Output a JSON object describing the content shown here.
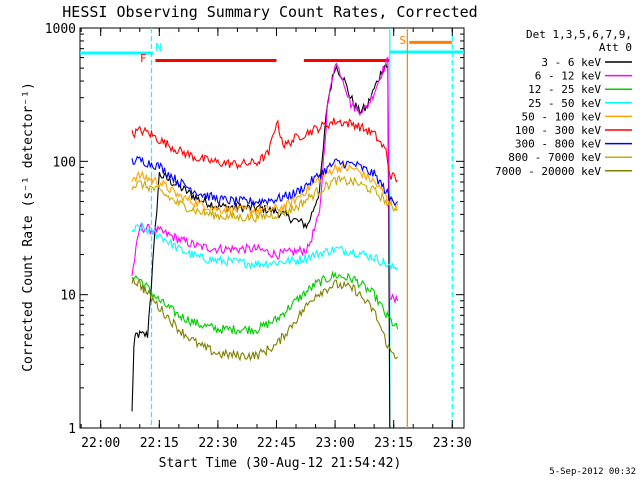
{
  "chart_data": {
    "type": "line",
    "title": "HESSI Observing Summary Count Rates, Corrected",
    "xlabel": "Start Time (30-Aug-12 21:54:42)",
    "ylabel": "Corrected Count Rate (s⁻¹ detector⁻¹)",
    "y_scale": "log",
    "ylim": [
      1,
      1000
    ],
    "xlim": [
      "21:54:42",
      "23:33:00"
    ],
    "x_ticks": [
      "22:00",
      "22:15",
      "22:30",
      "22:45",
      "23:00",
      "23:15",
      "23:30"
    ],
    "y_ticks": [
      "1",
      "10",
      "100",
      "1000"
    ],
    "footer": "5-Sep-2012 00:32",
    "legend_placement": "right",
    "legend_header": [
      "Det 1,3,5,6,7,9,",
      "Att 0"
    ],
    "series": [
      {
        "name": "3 - 6 keV",
        "color": "#000000",
        "x": [
          "22:08",
          "22:08:30",
          "22:09",
          "22:12",
          "22:15",
          "22:20",
          "22:25",
          "22:30",
          "22:35",
          "22:40",
          "22:45",
          "22:50",
          "22:53",
          "22:56",
          "22:58",
          "23:00",
          "23:02",
          "23:04",
          "23:06",
          "23:08",
          "23:10",
          "23:12",
          "23:13",
          "23:13:30",
          "23:14",
          "23:15"
        ],
        "y": [
          1.3,
          4,
          5,
          5,
          80,
          65,
          52,
          46,
          45,
          45,
          42,
          36,
          33,
          60,
          270,
          520,
          430,
          300,
          240,
          250,
          350,
          480,
          540,
          500,
          1,
          1
        ]
      },
      {
        "name": "6 - 12 keV",
        "color": "#ff00ff",
        "x": [
          "22:08",
          "22:10",
          "22:15",
          "22:20",
          "22:25",
          "22:30",
          "22:35",
          "22:40",
          "22:45",
          "22:50",
          "22:53",
          "22:56",
          "22:58",
          "23:00",
          "23:02",
          "23:04",
          "23:06",
          "23:08",
          "23:10",
          "23:12",
          "23:13:30",
          "23:14",
          "23:15",
          "23:16"
        ],
        "y": [
          14,
          32,
          30,
          26,
          23,
          22,
          22,
          22,
          20,
          21,
          22,
          40,
          250,
          560,
          420,
          270,
          240,
          250,
          330,
          470,
          570,
          10,
          9,
          9
        ]
      },
      {
        "name": "12 - 25 keV",
        "color": "#00cc00",
        "x": [
          "22:08",
          "22:10",
          "22:15",
          "22:20",
          "22:25",
          "22:30",
          "22:35",
          "22:40",
          "22:45",
          "22:50",
          "22:55",
          "23:00",
          "23:05",
          "23:10",
          "23:12",
          "23:13",
          "23:14",
          "23:16"
        ],
        "y": [
          14,
          13,
          9,
          7,
          6,
          5.5,
          5.5,
          5.5,
          6.5,
          9,
          12,
          14,
          13,
          10,
          8,
          7,
          6.5,
          5.5
        ]
      },
      {
        "name": "25 - 50 keV",
        "color": "#00ffff",
        "x": [
          "22:08",
          "22:10",
          "22:15",
          "22:20",
          "22:25",
          "22:30",
          "22:35",
          "22:40",
          "22:45",
          "22:50",
          "22:55",
          "23:00",
          "23:05",
          "23:10",
          "23:13",
          "23:14",
          "23:16"
        ],
        "y": [
          30,
          32,
          28,
          22,
          19,
          18,
          17.5,
          17,
          17.5,
          18,
          20,
          22,
          21,
          19,
          17,
          16,
          16
        ]
      },
      {
        "name": "50 - 100 keV",
        "color": "#ffa500",
        "x": [
          "22:08",
          "22:10",
          "22:15",
          "22:20",
          "22:25",
          "22:30",
          "22:35",
          "22:40",
          "22:45",
          "22:48",
          "22:50",
          "22:55",
          "23:00",
          "23:05",
          "23:10",
          "23:13",
          "23:14",
          "23:16"
        ],
        "y": [
          75,
          78,
          70,
          55,
          48,
          44,
          43,
          43,
          44,
          47,
          52,
          70,
          90,
          88,
          70,
          55,
          50,
          48
        ]
      },
      {
        "name": "100 - 300 keV",
        "color": "#ff0000",
        "x": [
          "22:08",
          "22:10",
          "22:12",
          "22:15",
          "22:20",
          "22:25",
          "22:30",
          "22:35",
          "22:40",
          "22:43",
          "22:45",
          "22:47",
          "22:50",
          "22:55",
          "23:00",
          "23:05",
          "23:10",
          "23:13",
          "23:14",
          "23:16"
        ],
        "y": [
          160,
          170,
          165,
          145,
          120,
          105,
          98,
          95,
          98,
          115,
          200,
          130,
          150,
          175,
          200,
          190,
          160,
          120,
          80,
          72
        ]
      },
      {
        "name": "300 - 800 keV",
        "color": "#0000ff",
        "x": [
          "22:08",
          "22:10",
          "22:15",
          "22:20",
          "22:25",
          "22:30",
          "22:35",
          "22:40",
          "22:45",
          "22:50",
          "22:55",
          "23:00",
          "23:05",
          "23:10",
          "23:13",
          "23:14",
          "23:16"
        ],
        "y": [
          100,
          102,
          92,
          70,
          58,
          52,
          50,
          50,
          52,
          58,
          75,
          98,
          95,
          80,
          60,
          52,
          50
        ]
      },
      {
        "name": "800 - 7000 keV",
        "color": "#ccaa00",
        "x": [
          "22:08",
          "22:10",
          "22:15",
          "22:20",
          "22:25",
          "22:30",
          "22:35",
          "22:40",
          "22:45",
          "22:50",
          "22:55",
          "23:00",
          "23:05",
          "23:10",
          "23:13",
          "23:14",
          "23:16"
        ],
        "y": [
          65,
          68,
          60,
          48,
          42,
          39,
          38,
          38,
          40,
          45,
          58,
          72,
          70,
          60,
          50,
          46,
          44
        ]
      },
      {
        "name": "7000 - 20000 keV",
        "color": "#808000",
        "x": [
          "22:08",
          "22:10",
          "22:15",
          "22:20",
          "22:25",
          "22:30",
          "22:35",
          "22:40",
          "22:45",
          "22:50",
          "22:55",
          "23:00",
          "23:05",
          "23:10",
          "23:13",
          "23:14",
          "23:16"
        ],
        "y": [
          13,
          12,
          8,
          5.5,
          4.2,
          3.6,
          3.5,
          3.5,
          4.2,
          6.5,
          10,
          12,
          11,
          7.5,
          4.5,
          3.8,
          3.4
        ]
      }
    ],
    "flag_bars": [
      {
        "label": "",
        "color": "#00ffff",
        "x_start": "21:54:42",
        "x_end": "22:13:30",
        "y": 650
      },
      {
        "label": "N",
        "color": "#00ffff",
        "x_start": "",
        "x_end": "",
        "y": 700
      },
      {
        "label": "F",
        "color": "#ff0000",
        "x_start": "22:14",
        "x_end": "22:45",
        "y": 570
      },
      {
        "label": "",
        "color": "#ff0000",
        "x_start": "22:52",
        "x_end": "23:14",
        "y": 570
      },
      {
        "label": "S",
        "color": "#ff8000",
        "x_start": "23:19",
        "x_end": "23:30",
        "y": 780
      },
      {
        "label": "",
        "color": "#00ffff",
        "x_start": "23:14",
        "x_end": "23:33",
        "y": 660
      }
    ],
    "vertical_lines": [
      {
        "x": "22:13:00",
        "color": "#00ffff",
        "style": "dashed"
      },
      {
        "x": "23:14:00",
        "color": "#00ffff",
        "style": "solid"
      },
      {
        "x": "23:18:30",
        "color": "#ff8000",
        "style": "solid"
      },
      {
        "x": "23:30:00",
        "color": "#00ffff",
        "style": "dashed"
      }
    ]
  }
}
